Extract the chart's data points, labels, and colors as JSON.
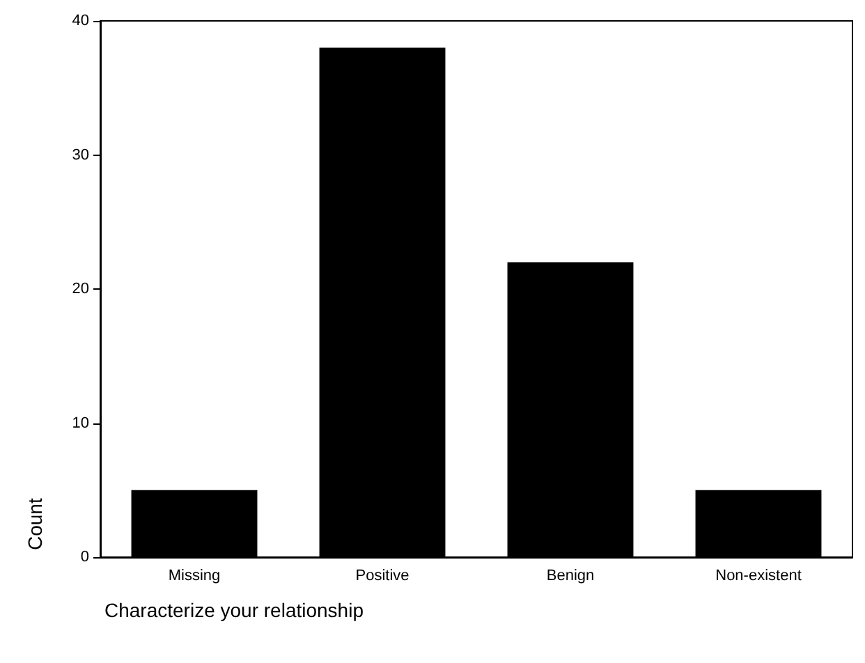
{
  "chart_data": {
    "type": "bar",
    "xlabel": "Characterize your relationship",
    "ylabel": "Count",
    "categories": [
      "Missing",
      "Positive",
      "Benign",
      "Non-existent"
    ],
    "values": [
      5,
      38,
      22,
      5
    ],
    "color": "#000000",
    "ylim": [
      0,
      40
    ],
    "yticks": [
      0,
      10,
      20,
      30,
      40
    ],
    "grid": false
  }
}
